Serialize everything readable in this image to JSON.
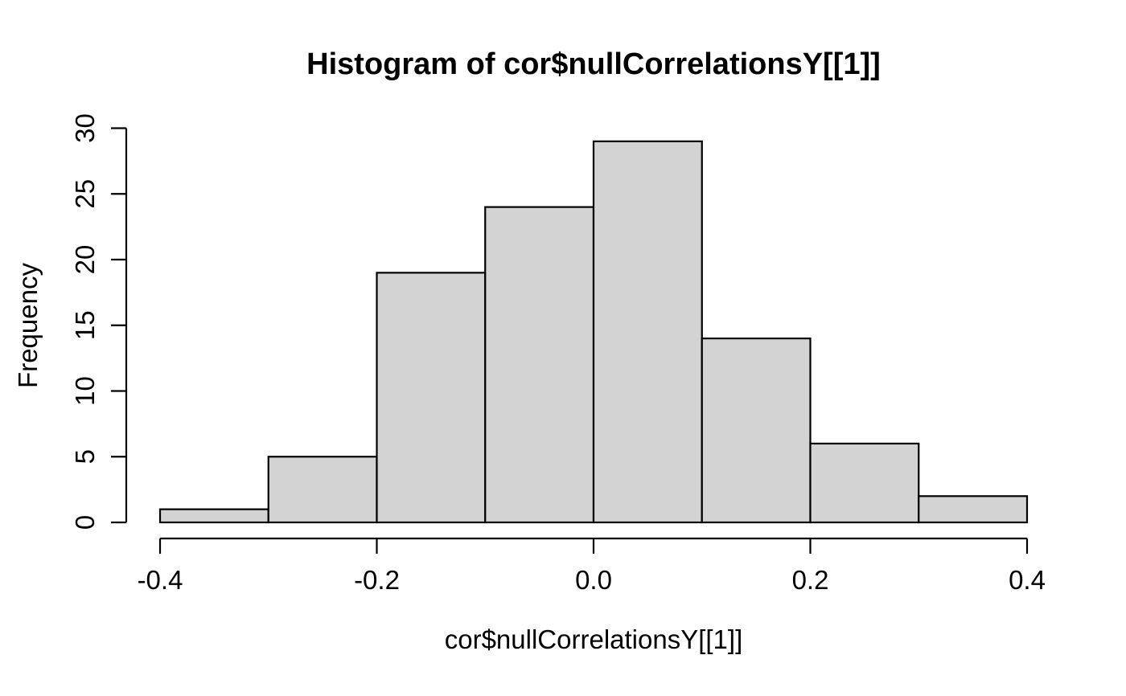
{
  "figure": {
    "background": "#ffffff"
  },
  "chart_data": {
    "type": "bar",
    "subtype": "histogram",
    "title": "Histogram of cor$nullCorrelationsY[[1]]",
    "xlabel": "cor$nullCorrelationsY[[1]]",
    "ylabel": "Frequency",
    "bin_edges": [
      -0.4,
      -0.3,
      -0.2,
      -0.1,
      0,
      0.1,
      0.2,
      0.3,
      0.4
    ],
    "counts": [
      1,
      5,
      19,
      24,
      29,
      14,
      6,
      2
    ],
    "xlim": [
      -0.4,
      0.4
    ],
    "ylim": [
      0,
      30
    ],
    "x_ticks": [
      {
        "value": -0.4,
        "label": "-0.4"
      },
      {
        "value": -0.2,
        "label": "-0.2"
      },
      {
        "value": 0,
        "label": "0.0"
      },
      {
        "value": 0.2,
        "label": "0.2"
      },
      {
        "value": 0.4,
        "label": "0.4"
      }
    ],
    "y_ticks": [
      {
        "value": 0,
        "label": "0"
      },
      {
        "value": 5,
        "label": "5"
      },
      {
        "value": 10,
        "label": "10"
      },
      {
        "value": 15,
        "label": "15"
      },
      {
        "value": 20,
        "label": "20"
      },
      {
        "value": 25,
        "label": "25"
      },
      {
        "value": 30,
        "label": "30"
      }
    ],
    "bar_fill": "#d3d3d3",
    "bar_stroke": "#000000",
    "axis_color": "#000000",
    "grid": false,
    "legend_position": null
  }
}
